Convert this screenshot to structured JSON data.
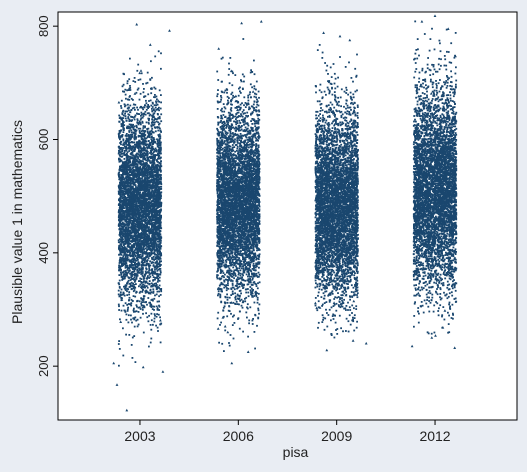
{
  "chart_data": {
    "type": "scatter",
    "title": "",
    "xlabel": "pisa",
    "ylabel": "Plausible value 1 in mathematics",
    "x_ticks": [
      "2003",
      "2006",
      "2009",
      "2012"
    ],
    "y_ticks": [
      "200",
      "400",
      "600",
      "800"
    ],
    "xlim": [
      2000.5,
      2014.5
    ],
    "ylim": [
      105,
      825
    ],
    "grid": false,
    "legend": "none",
    "jitter_width": 1.3,
    "marker_color": "#1a476f",
    "plot_background": "#ffffff",
    "outer_background": "#e9edf3",
    "series": [
      {
        "x": 2003,
        "n_points": 5000,
        "mean": 485,
        "sd": 85,
        "max": 803,
        "min": 122,
        "outliers": [
          [
            2002.9,
            803
          ],
          [
            2003.9,
            792
          ],
          [
            2002.2,
            205
          ],
          [
            2003.1,
            198
          ],
          [
            2002.3,
            167
          ],
          [
            2002.6,
            122
          ],
          [
            2003.7,
            190
          ]
        ]
      },
      {
        "x": 2006,
        "n_points": 5000,
        "mean": 490,
        "sd": 82,
        "max": 808,
        "min": 201,
        "outliers": [
          [
            2006.7,
            808
          ],
          [
            2006.1,
            805
          ],
          [
            2005.4,
            760
          ],
          [
            2005.8,
            205
          ],
          [
            2006.3,
            225
          ],
          [
            2005.6,
            270
          ]
        ]
      },
      {
        "x": 2009,
        "n_points": 5000,
        "mean": 485,
        "sd": 83,
        "max": 788,
        "min": 225,
        "outliers": [
          [
            2008.6,
            788
          ],
          [
            2009.1,
            782
          ],
          [
            2009.4,
            775
          ],
          [
            2008.7,
            228
          ],
          [
            2009.5,
            245
          ],
          [
            2009.9,
            240
          ]
        ]
      },
      {
        "x": 2012,
        "n_points": 5000,
        "mean": 510,
        "sd": 87,
        "max": 818,
        "min": 232,
        "outliers": [
          [
            2012.0,
            818
          ],
          [
            2011.6,
            808
          ],
          [
            2012.4,
            795
          ],
          [
            2011.3,
            235
          ],
          [
            2012.6,
            232
          ],
          [
            2011.9,
            250
          ]
        ]
      }
    ]
  }
}
